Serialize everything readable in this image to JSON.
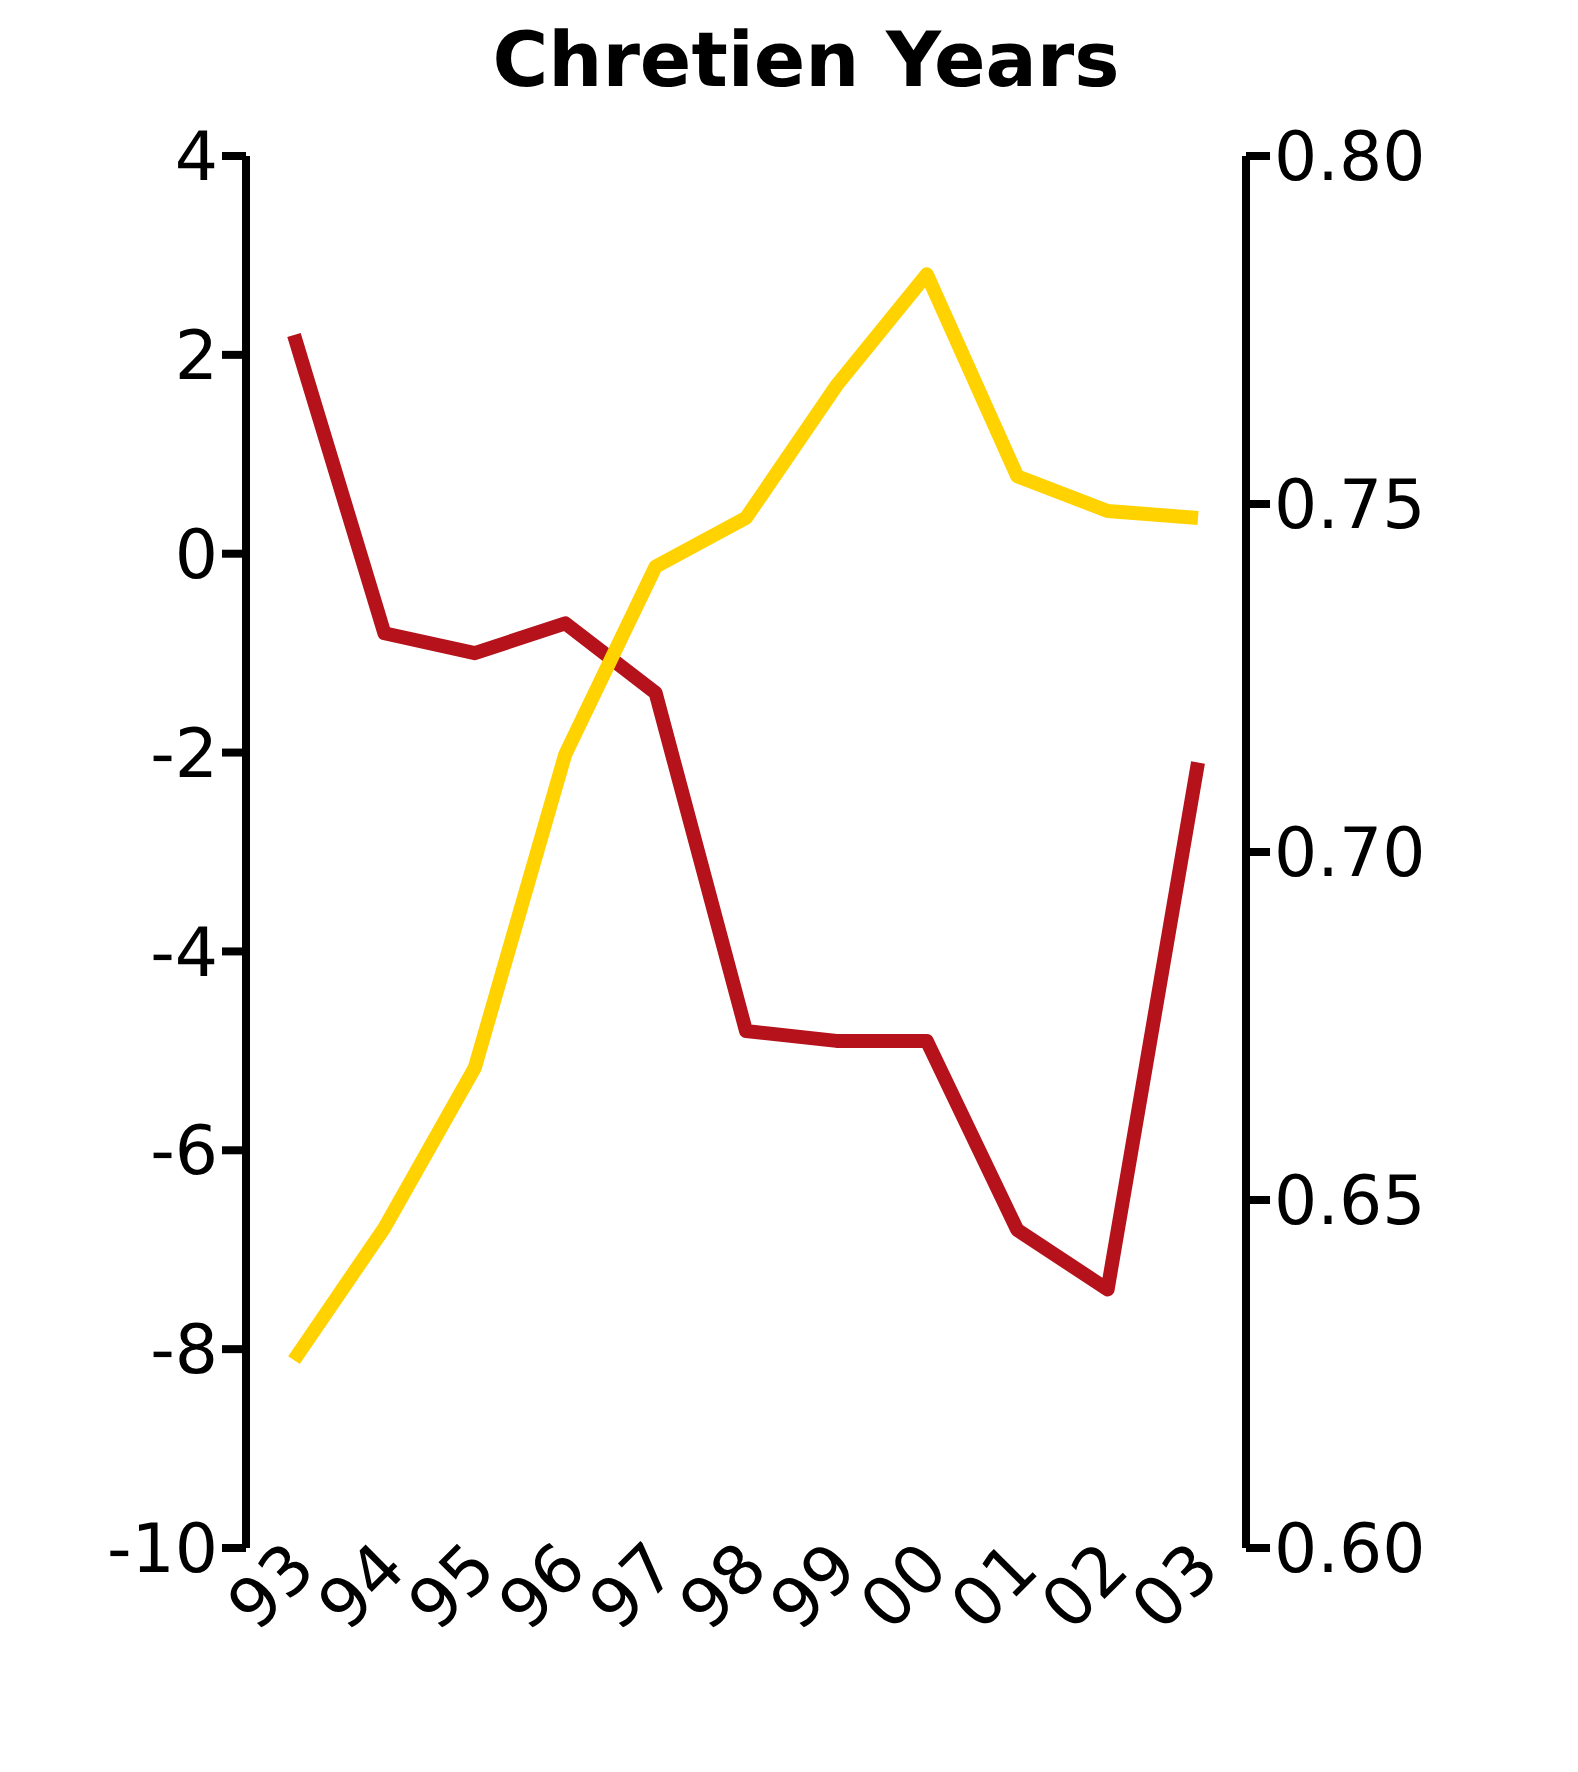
{
  "chart_data": {
    "type": "line",
    "title": "Chretien Years",
    "categories": [
      "93",
      "94",
      "95",
      "96",
      "97",
      "98",
      "99",
      "00",
      "01",
      "02",
      "03"
    ],
    "series": [
      {
        "color": "#b5121b",
        "values": [
          2.2,
          -0.8,
          -1.0,
          -0.7,
          -1.4,
          -4.8,
          -4.9,
          -4.9,
          -6.8,
          -7.4,
          -2.1
        ]
      },
      {
        "color": "#ffd200",
        "axis": "y2",
        "values": [
          0.627,
          0.646,
          0.669,
          0.714,
          0.741,
          0.748,
          0.767,
          0.783,
          0.754,
          0.749,
          0.748
        ]
      }
    ],
    "ylim": [
      -10,
      4
    ],
    "yticks": [
      -10,
      -8,
      -6,
      -4,
      -2,
      0,
      2,
      4
    ],
    "y2lim": [
      0.6,
      0.8
    ],
    "y2ticks": [
      {
        "value": 0.6,
        "label": "0.60"
      },
      {
        "value": 0.65,
        "label": "0.65"
      },
      {
        "value": 0.7,
        "label": "0.70"
      },
      {
        "value": 0.75,
        "label": "0.75"
      },
      {
        "value": 0.8,
        "label": "0.80"
      }
    ],
    "grid": false,
    "legend": false,
    "marker": "none",
    "line_style": "solid"
  }
}
